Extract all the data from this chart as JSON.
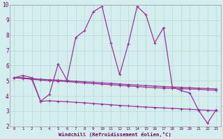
{
  "xlabel": "Windchill (Refroidissement éolien,°C)",
  "bg_color": "#d4eeed",
  "grid_color": "#b8d8d8",
  "line_color": "#993399",
  "xlim": [
    -0.5,
    23.5
  ],
  "ylim": [
    2,
    10
  ],
  "xticks": [
    0,
    1,
    2,
    3,
    4,
    5,
    6,
    7,
    8,
    9,
    10,
    11,
    12,
    13,
    14,
    15,
    16,
    17,
    18,
    19,
    20,
    21,
    22,
    23
  ],
  "yticks": [
    2,
    3,
    4,
    5,
    6,
    7,
    8,
    9,
    10
  ],
  "line1_x": [
    0,
    1,
    2,
    3,
    4,
    5,
    6,
    7,
    8,
    9,
    10,
    11,
    12,
    13,
    14,
    15,
    16,
    17,
    18,
    19,
    20,
    21,
    22,
    23
  ],
  "line1_y": [
    5.2,
    5.35,
    5.2,
    3.65,
    4.1,
    6.1,
    5.05,
    7.85,
    8.3,
    9.55,
    9.9,
    7.5,
    5.4,
    7.45,
    9.9,
    9.35,
    7.5,
    8.5,
    4.6,
    4.35,
    4.2,
    3.05,
    2.2,
    3.1
  ],
  "line2_x": [
    0,
    1,
    2,
    3,
    4,
    5,
    6,
    7,
    8,
    9,
    10,
    11,
    12,
    13,
    14,
    15,
    16,
    17,
    18,
    19,
    20,
    21,
    22,
    23
  ],
  "line2_y": [
    5.2,
    5.15,
    5.1,
    5.05,
    5.0,
    4.98,
    4.95,
    4.9,
    4.85,
    4.82,
    4.78,
    4.74,
    4.7,
    4.66,
    4.62,
    4.58,
    4.54,
    4.52,
    4.5,
    4.48,
    4.46,
    4.44,
    4.4,
    4.38
  ],
  "line3_x": [
    0,
    1,
    2,
    3,
    4,
    5,
    6,
    7,
    8,
    9,
    10,
    11,
    12,
    13,
    14,
    15,
    16,
    17,
    18,
    19,
    20,
    21,
    22,
    23
  ],
  "line3_y": [
    5.2,
    5.18,
    5.15,
    5.1,
    5.07,
    5.04,
    5.0,
    4.97,
    4.93,
    4.9,
    4.86,
    4.83,
    4.79,
    4.75,
    4.72,
    4.68,
    4.65,
    4.62,
    4.59,
    4.57,
    4.54,
    4.51,
    4.49,
    4.46
  ],
  "line4_x": [
    0,
    1,
    2,
    3,
    4,
    5,
    6,
    7,
    8,
    9,
    10,
    11,
    12,
    13,
    14,
    15,
    16,
    17,
    18,
    19,
    20,
    21,
    22,
    23
  ],
  "line4_y": [
    5.2,
    5.2,
    5.1,
    3.65,
    3.68,
    3.65,
    3.62,
    3.58,
    3.55,
    3.5,
    3.46,
    3.42,
    3.38,
    3.34,
    3.3,
    3.27,
    3.24,
    3.21,
    3.18,
    3.15,
    3.12,
    3.09,
    3.06,
    3.03
  ]
}
